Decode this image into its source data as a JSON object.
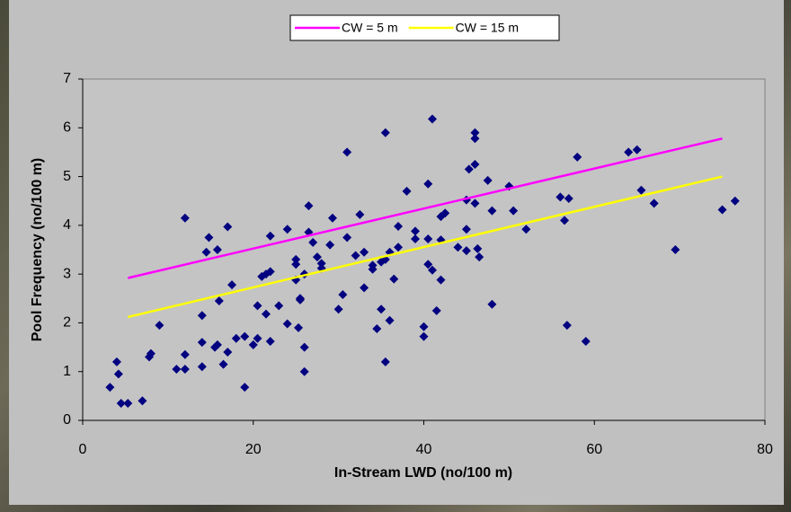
{
  "chart_data": {
    "type": "scatter",
    "x_label": "In-Stream LWD (no/100 m)",
    "y_label": "Pool Frequency (no/100 m)",
    "xlim": [
      0,
      80
    ],
    "xticks": [
      0,
      20,
      40,
      60,
      80
    ],
    "ylim": [
      0,
      7
    ],
    "yticks": [
      0,
      1,
      2,
      3,
      4,
      5,
      6,
      7
    ],
    "grid": false,
    "legend": "top",
    "series": [
      {
        "type": "scatter",
        "color": "#000080",
        "x": [
          3.2,
          4,
          4.2,
          4.5,
          5.3,
          7,
          7.8,
          8,
          9,
          11,
          12,
          12,
          12,
          14,
          14,
          14,
          14.5,
          14.8,
          15.5,
          15.8,
          15.8,
          16,
          16.5,
          17,
          17,
          17.5,
          18,
          19,
          19,
          20,
          20.5,
          20.5,
          21,
          21.5,
          21.5,
          22,
          22,
          22,
          23,
          24,
          24,
          25,
          25,
          25,
          25.3,
          25.5,
          25.5,
          26,
          26,
          26,
          26.5,
          26.5,
          27,
          27.5,
          28,
          28,
          29,
          29.3,
          30,
          30.5,
          31,
          31,
          32,
          32.5,
          33,
          33,
          34,
          34,
          34.5,
          35,
          35,
          35.5,
          35.5,
          35.5,
          36,
          36,
          36.5,
          37,
          37,
          38,
          39,
          39,
          40,
          40,
          40.5,
          40.5,
          40.5,
          41,
          41,
          41.5,
          42,
          42,
          42,
          42.5,
          44,
          45,
          45,
          45,
          45.3,
          46,
          46,
          46,
          46,
          46.3,
          46.5,
          47.5,
          48,
          48,
          50,
          50.5,
          52,
          56,
          56.5,
          57,
          56.8,
          58,
          59,
          64,
          65,
          65.5,
          67,
          69.5,
          75,
          76.5
        ],
        "values": [
          0.68,
          1.2,
          0.95,
          0.35,
          0.35,
          0.4,
          1.3,
          1.37,
          1.95,
          1.05,
          1.05,
          1.35,
          4.15,
          1.6,
          2.15,
          1.1,
          3.45,
          3.75,
          1.5,
          1.55,
          3.5,
          2.45,
          1.15,
          1.4,
          3.97,
          2.78,
          1.68,
          0.68,
          1.72,
          1.55,
          1.68,
          2.35,
          2.95,
          2.18,
          3.0,
          3.78,
          1.62,
          3.05,
          2.35,
          1.98,
          3.92,
          2.88,
          3.3,
          3.2,
          1.9,
          2.5,
          2.47,
          3.0,
          1.5,
          1.0,
          4.4,
          3.86,
          3.65,
          3.35,
          3.22,
          3.12,
          3.6,
          4.15,
          2.28,
          2.58,
          5.5,
          3.75,
          3.38,
          4.22,
          2.72,
          3.45,
          3.1,
          3.18,
          1.88,
          3.25,
          2.28,
          1.2,
          5.9,
          3.3,
          3.45,
          2.05,
          2.9,
          3.55,
          3.98,
          4.7,
          3.72,
          3.88,
          1.92,
          1.72,
          4.85,
          3.72,
          3.2,
          6.18,
          3.08,
          2.25,
          3.7,
          2.88,
          4.18,
          4.25,
          3.55,
          3.92,
          4.52,
          3.48,
          5.15,
          4.45,
          5.25,
          5.9,
          5.78,
          3.52,
          3.35,
          4.92,
          2.38,
          4.3,
          4.8,
          4.3,
          3.92,
          4.58,
          4.1,
          4.55,
          1.95,
          5.4,
          1.62,
          5.5,
          5.55,
          4.72,
          4.45,
          3.5,
          4.32,
          4.5
        ]
      },
      {
        "type": "line",
        "name": "CW = 5 m",
        "color": "#ff00ff",
        "x": [
          5.3,
          75
        ],
        "values": [
          2.92,
          5.78
        ]
      },
      {
        "type": "line",
        "name": "CW = 15 m",
        "color": "#ffff00",
        "x": [
          5.3,
          75
        ],
        "values": [
          2.12,
          5.0
        ]
      }
    ]
  }
}
